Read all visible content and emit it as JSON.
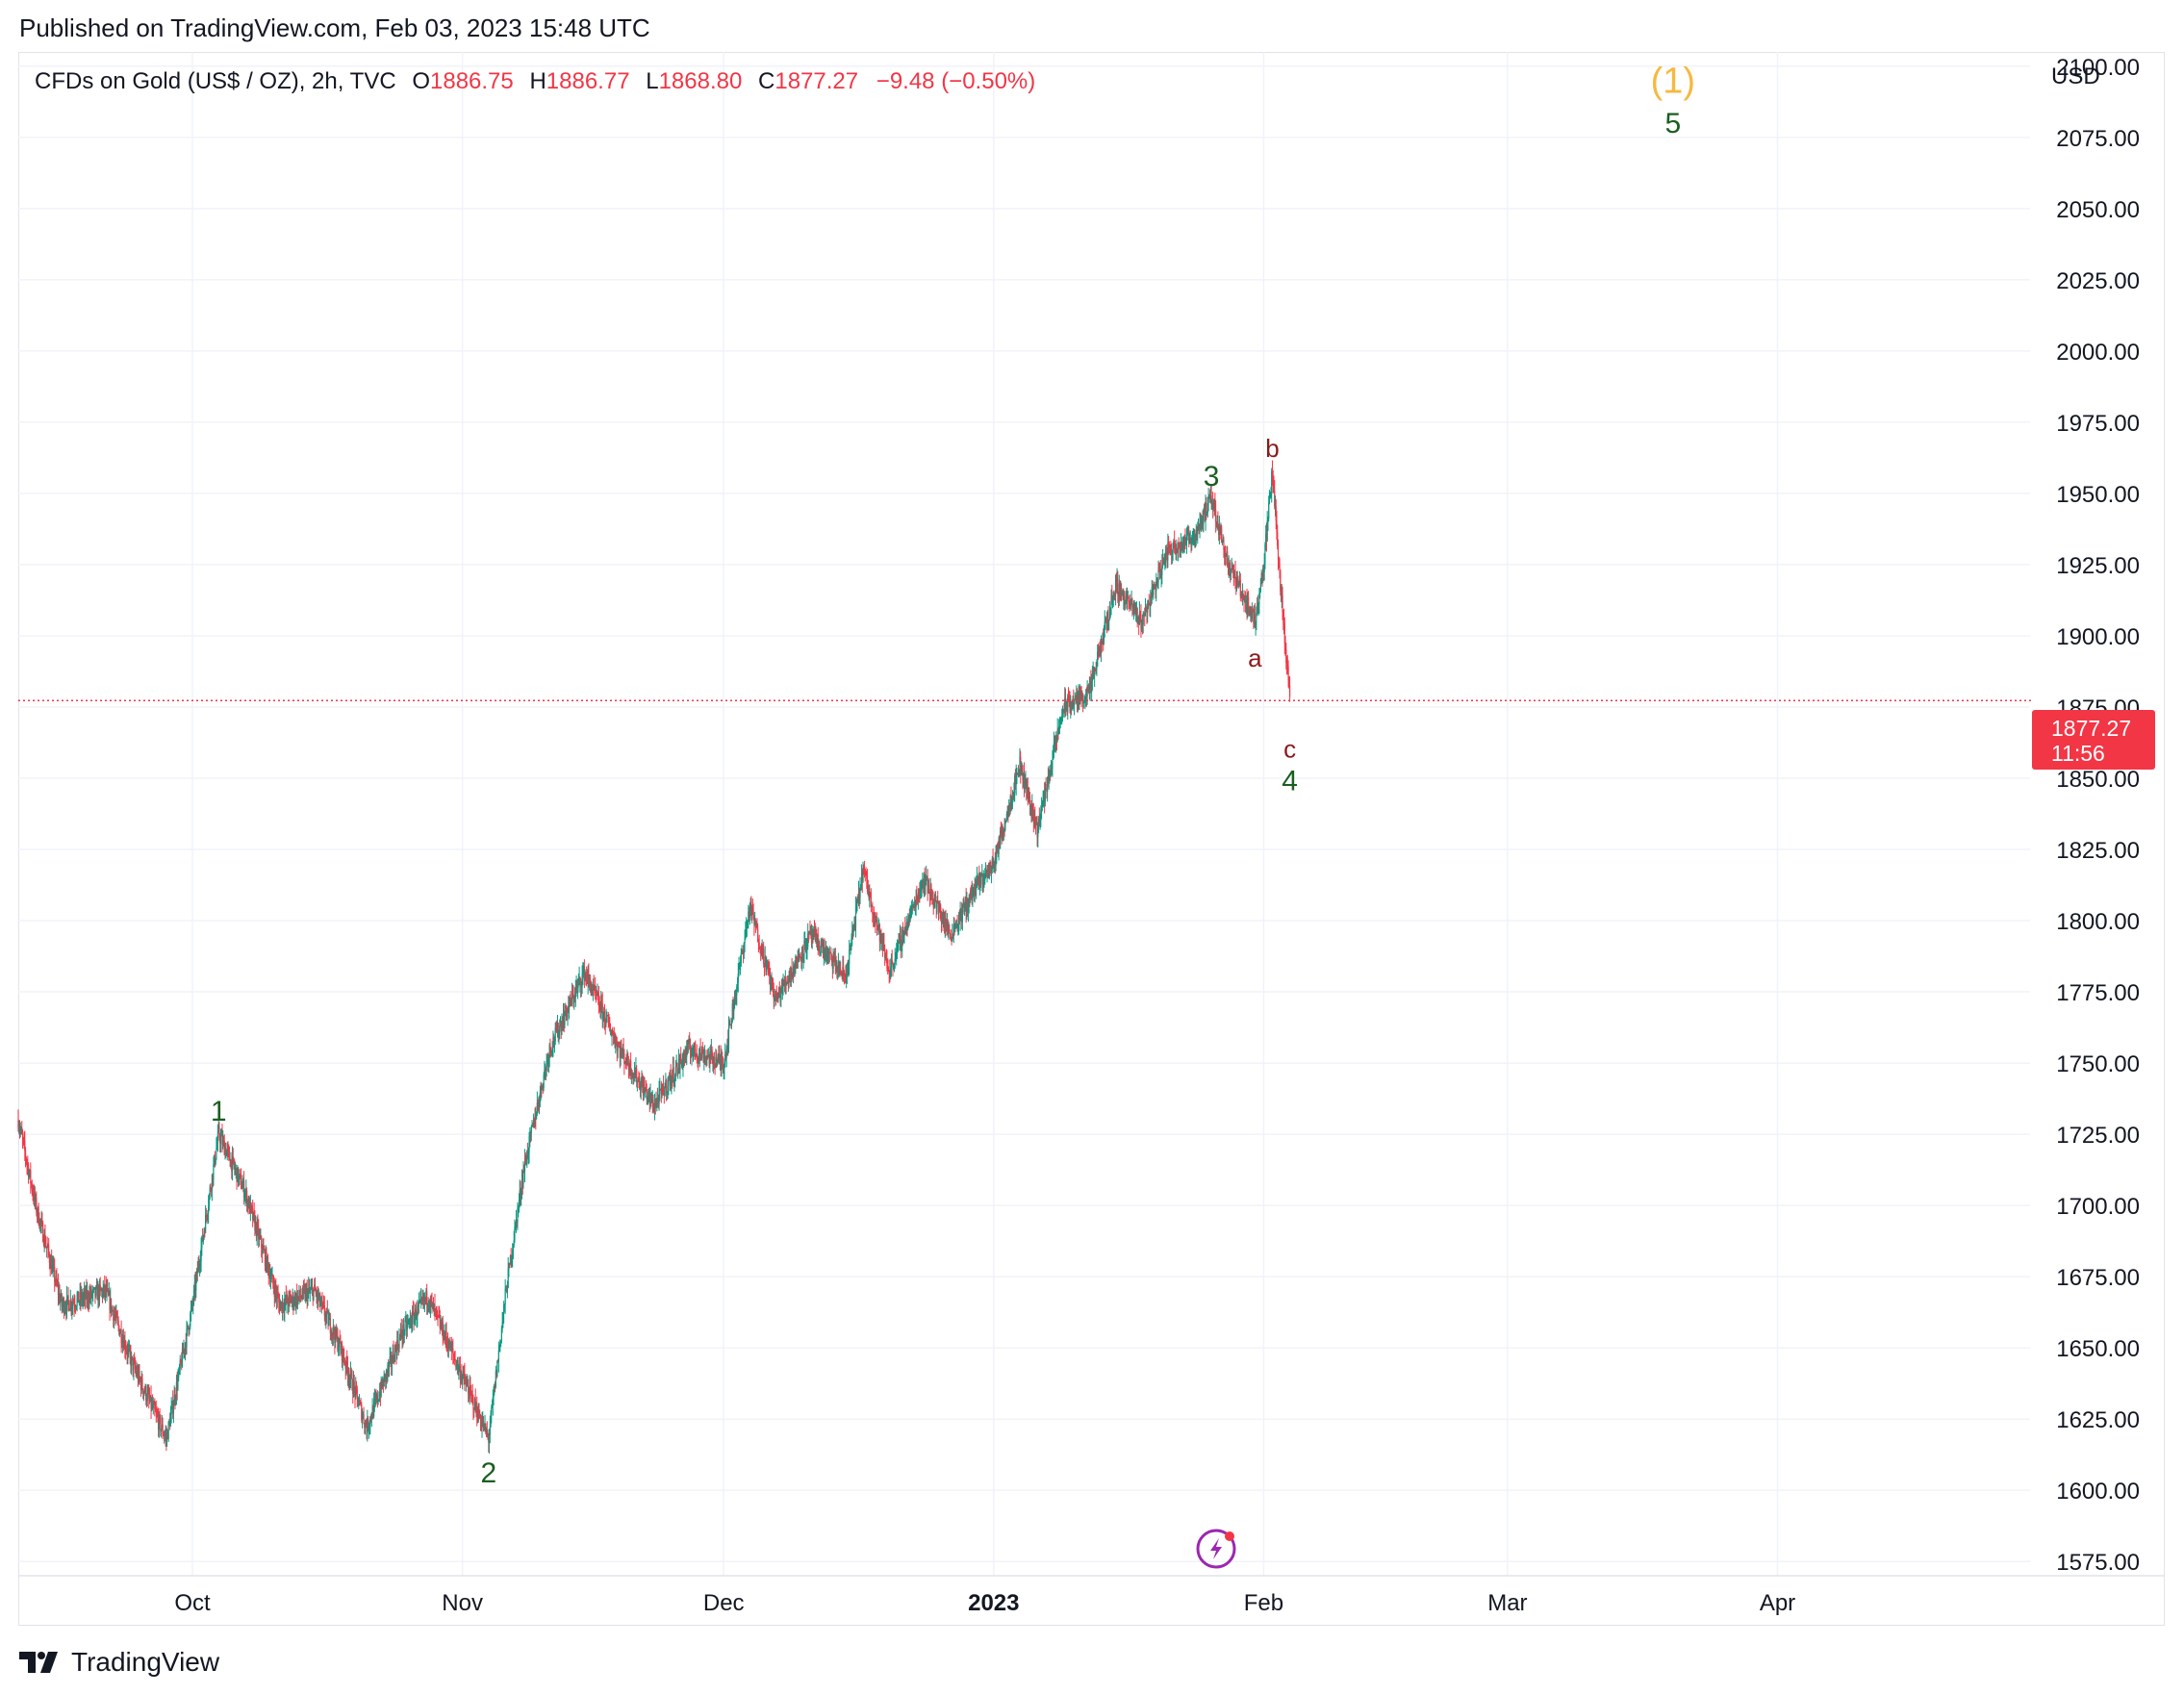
{
  "header": {
    "published": "Published on TradingView.com, Feb 03, 2023 15:48 UTC"
  },
  "legend": {
    "symbol": "CFDs on Gold (US$ / OZ), 2h, TVC",
    "open_label": "O",
    "open": "1886.75",
    "high_label": "H",
    "high": "1886.77",
    "low_label": "L",
    "low": "1868.80",
    "close_label": "C",
    "close": "1877.27",
    "change": "−9.48 (−0.50%)"
  },
  "axis": {
    "currency": "USD"
  },
  "price_tag": {
    "price": "1877.27",
    "countdown": "11:56"
  },
  "brand": {
    "name": "TradingView"
  },
  "colors": {
    "up": "#089981",
    "down": "#f23645",
    "wave_green": "#1b5e20",
    "wave_red": "#8b1a1a",
    "wave_orange": "#f5b942",
    "grid": "#f0f3fa"
  },
  "icons": {
    "replay": "lightning-icon",
    "logo": "tradingview-logo-icon"
  },
  "chart_data": {
    "type": "candlestick",
    "title": "",
    "xlabel": "",
    "ylabel": "",
    "ylim": [
      1570,
      2105
    ],
    "yticks": [
      "1575.00",
      "1600.00",
      "1625.00",
      "1650.00",
      "1675.00",
      "1700.00",
      "1725.00",
      "1750.00",
      "1775.00",
      "1800.00",
      "1825.00",
      "1850.00",
      "1875.00",
      "1900.00",
      "1925.00",
      "1950.00",
      "1975.00",
      "2000.00",
      "2025.00",
      "2050.00",
      "2075.00",
      "2100.00"
    ],
    "xticks": [
      {
        "label": "Oct",
        "date": "2022-10-01",
        "bold": false
      },
      {
        "label": "Nov",
        "date": "2022-11-01",
        "bold": false
      },
      {
        "label": "Dec",
        "date": "2022-12-01",
        "bold": false
      },
      {
        "label": "2023",
        "date": "2023-01-01",
        "bold": true
      },
      {
        "label": "Feb",
        "date": "2023-02-01",
        "bold": false
      },
      {
        "label": "Mar",
        "date": "2023-03-01",
        "bold": false
      },
      {
        "label": "Apr",
        "date": "2023-04-01",
        "bold": false
      }
    ],
    "xrange": [
      "2022-09-11",
      "2023-04-30"
    ],
    "grid": true,
    "last_price": 1877.27,
    "price_path": [
      {
        "date": "2022-09-11",
        "price": 1730
      },
      {
        "date": "2022-09-13",
        "price": 1700
      },
      {
        "date": "2022-09-16",
        "price": 1665
      },
      {
        "date": "2022-09-21",
        "price": 1670
      },
      {
        "date": "2022-09-24",
        "price": 1645
      },
      {
        "date": "2022-09-28",
        "price": 1618
      },
      {
        "date": "2022-10-01",
        "price": 1665
      },
      {
        "date": "2022-10-04",
        "price": 1725
      },
      {
        "date": "2022-10-07",
        "price": 1705
      },
      {
        "date": "2022-10-11",
        "price": 1665
      },
      {
        "date": "2022-10-15",
        "price": 1670
      },
      {
        "date": "2022-10-18",
        "price": 1650
      },
      {
        "date": "2022-10-21",
        "price": 1622
      },
      {
        "date": "2022-10-25",
        "price": 1655
      },
      {
        "date": "2022-10-28",
        "price": 1668
      },
      {
        "date": "2022-11-01",
        "price": 1640
      },
      {
        "date": "2022-11-04",
        "price": 1618
      },
      {
        "date": "2022-11-06",
        "price": 1670
      },
      {
        "date": "2022-11-08",
        "price": 1712
      },
      {
        "date": "2022-11-11",
        "price": 1755
      },
      {
        "date": "2022-11-15",
        "price": 1782
      },
      {
        "date": "2022-11-19",
        "price": 1755
      },
      {
        "date": "2022-11-23",
        "price": 1735
      },
      {
        "date": "2022-11-27",
        "price": 1755
      },
      {
        "date": "2022-12-01",
        "price": 1750
      },
      {
        "date": "2022-12-04",
        "price": 1805
      },
      {
        "date": "2022-12-07",
        "price": 1772
      },
      {
        "date": "2022-12-11",
        "price": 1795
      },
      {
        "date": "2022-12-15",
        "price": 1780
      },
      {
        "date": "2022-12-17",
        "price": 1818
      },
      {
        "date": "2022-12-20",
        "price": 1782
      },
      {
        "date": "2022-12-24",
        "price": 1815
      },
      {
        "date": "2022-12-27",
        "price": 1795
      },
      {
        "date": "2022-12-30",
        "price": 1812
      },
      {
        "date": "2023-01-01",
        "price": 1820
      },
      {
        "date": "2023-01-04",
        "price": 1855
      },
      {
        "date": "2023-01-06",
        "price": 1832
      },
      {
        "date": "2023-01-09",
        "price": 1875
      },
      {
        "date": "2023-01-12",
        "price": 1880
      },
      {
        "date": "2023-01-15",
        "price": 1918
      },
      {
        "date": "2023-01-18",
        "price": 1905
      },
      {
        "date": "2023-01-21",
        "price": 1930
      },
      {
        "date": "2023-01-24",
        "price": 1935
      },
      {
        "date": "2023-01-26",
        "price": 1948
      },
      {
        "date": "2023-01-28",
        "price": 1925
      },
      {
        "date": "2023-01-31",
        "price": 1905
      },
      {
        "date": "2023-02-01",
        "price": 1925
      },
      {
        "date": "2023-02-02",
        "price": 1958
      },
      {
        "date": "2023-02-03",
        "price": 1915
      },
      {
        "date": "2023-02-04",
        "price": 1877.27
      }
    ],
    "wave_labels": [
      {
        "text": "1",
        "date": "2022-10-04",
        "price": 1725,
        "color": "green",
        "pos": "above"
      },
      {
        "text": "2",
        "date": "2022-11-04",
        "price": 1615,
        "color": "green",
        "pos": "below"
      },
      {
        "text": "3",
        "date": "2023-01-26",
        "price": 1948,
        "color": "green",
        "pos": "above"
      },
      {
        "text": "a",
        "date": "2023-01-31",
        "price": 1900,
        "color": "red",
        "pos": "below"
      },
      {
        "text": "b",
        "date": "2023-02-02",
        "price": 1958,
        "color": "red",
        "pos": "above"
      },
      {
        "text": "c",
        "date": "2023-02-04",
        "price": 1868,
        "color": "red",
        "pos": "below"
      },
      {
        "text": "4",
        "date": "2023-02-04",
        "price": 1860,
        "color": "green",
        "pos": "below2"
      },
      {
        "text": "(1)",
        "date": "2023-03-20",
        "price": 2095,
        "color": "orange",
        "pos": "at"
      },
      {
        "text": "5",
        "date": "2023-03-20",
        "price": 2080,
        "color": "green",
        "pos": "at"
      }
    ]
  }
}
